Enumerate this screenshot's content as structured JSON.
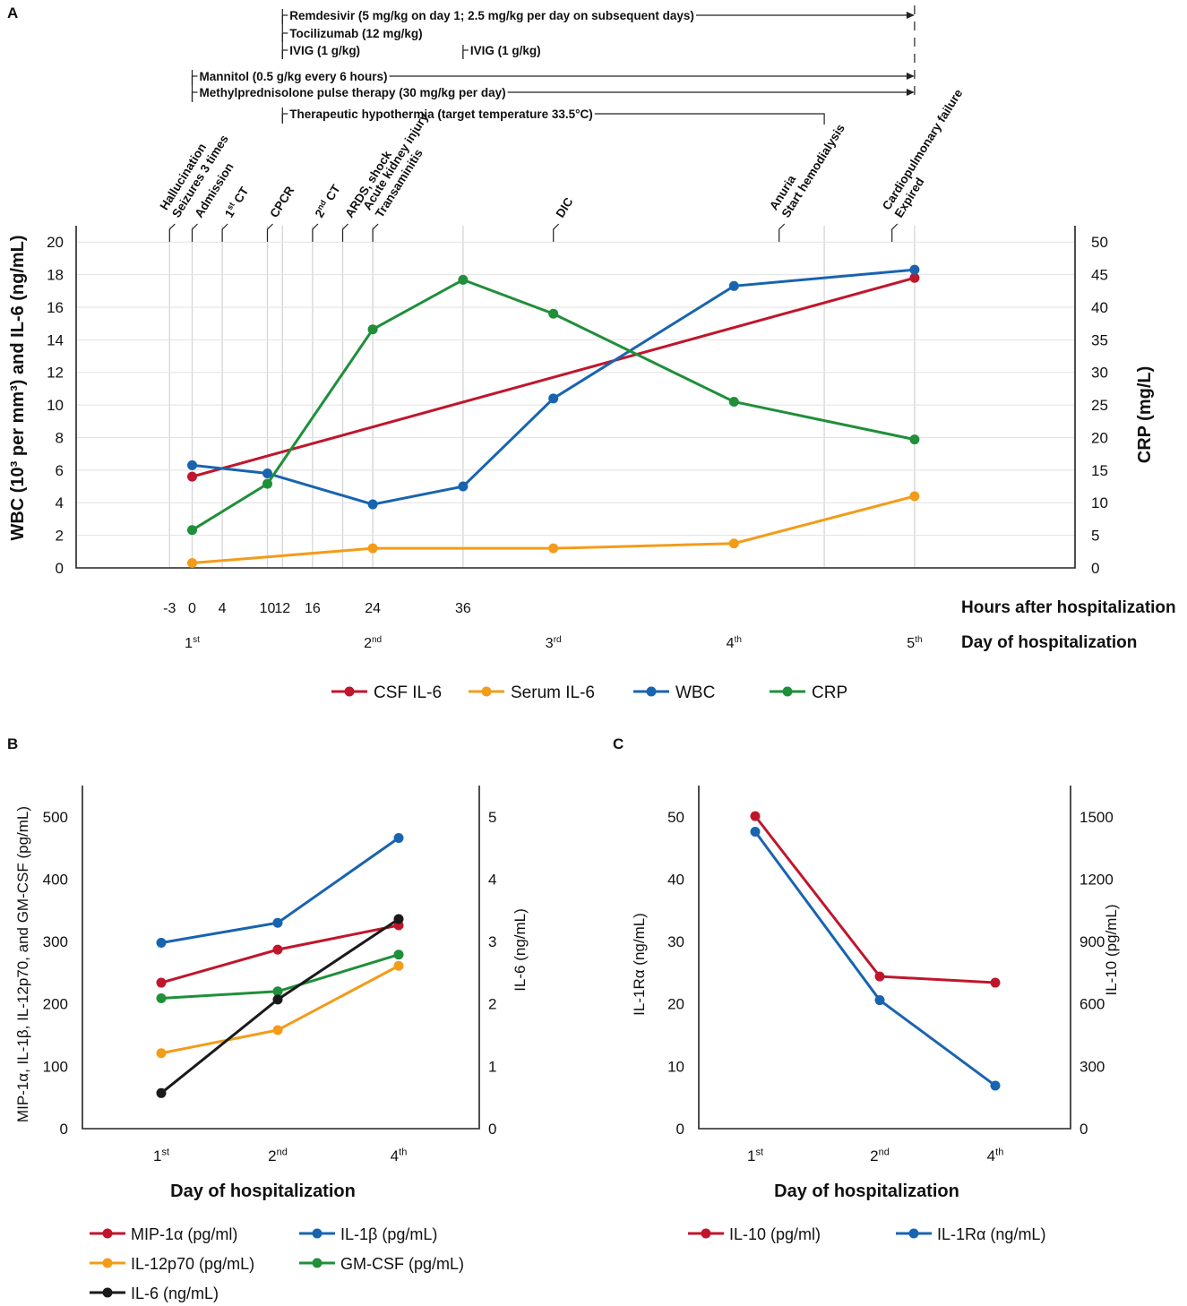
{
  "colors": {
    "red": "#c0162c",
    "orange": "#f39c19",
    "blue": "#1864b0",
    "green": "#1f8f3a",
    "black": "#1a1a1a",
    "grid": "#d6d6d6"
  },
  "panels": {
    "a": "A",
    "b": "B",
    "c": "C"
  },
  "treatments": [
    {
      "label": "Remdesivir (5 mg/kg on day 1; 2.5 mg/kg per day on subsequent days)",
      "start_hour": 12,
      "end_hour": 96,
      "arrow": true
    },
    {
      "label": "Tocilizumab (12 mg/kg)",
      "start_hour": 12,
      "end_hour": null,
      "arrow": false
    },
    {
      "label": "IVIG (1 g/kg)",
      "start_hour": 12,
      "end_hour": null,
      "arrow": false
    },
    {
      "label": "IVIG (1 g/kg)",
      "start_hour": 36,
      "end_hour": null,
      "arrow": false
    },
    {
      "label": "Mannitol (0.5 g/kg every 6 hours)",
      "start_hour": 0,
      "end_hour": 96,
      "arrow": true
    },
    {
      "label": "Methylprednisolone pulse therapy (30 mg/kg per day)",
      "start_hour": 0,
      "end_hour": 96,
      "arrow": true
    },
    {
      "label": "Therapeutic hypothermia (target temperature 33.5°C)",
      "start_hour": 12,
      "end_hour": 84,
      "arrow": false
    }
  ],
  "events": [
    {
      "hour": -3,
      "lines": [
        "Hallucination",
        "Seizures 3 times"
      ]
    },
    {
      "hour": 0,
      "lines": [
        "Admission"
      ]
    },
    {
      "hour": 4,
      "lines": [
        "1st CT"
      ]
    },
    {
      "hour": 10,
      "lines": [
        "CPCR"
      ]
    },
    {
      "hour": 16,
      "lines": [
        "2nd CT"
      ]
    },
    {
      "hour": 20,
      "lines": [
        "ARDS, shock"
      ]
    },
    {
      "hour": 24,
      "lines": [
        "Acute kidney injury",
        "Transaminitis"
      ]
    },
    {
      "hour": 48,
      "lines": [
        "DIC"
      ]
    },
    {
      "hour": 78,
      "lines": [
        "Anuria",
        "Start hemodialysis"
      ]
    },
    {
      "hour": 93,
      "lines": [
        "Cardiopulmonary failure",
        "Expired"
      ]
    }
  ],
  "chart_data": [
    {
      "type": "line",
      "panel": "A",
      "ylabel": "WBC (10³ per mm³) and IL-6 (ng/mL)",
      "y2label": "CRP (mg/L)",
      "xlabel_hours": "Hours after hospitalization",
      "xlabel_days": "Day of hospitalization",
      "xlim": [
        -11,
        120
      ],
      "ylim": [
        0,
        21
      ],
      "y2lim": [
        0,
        52.5
      ],
      "yticks": [
        0,
        2,
        4,
        6,
        8,
        10,
        12,
        14,
        16,
        18,
        20
      ],
      "y2ticks": [
        0,
        5,
        10,
        15,
        20,
        25,
        30,
        35,
        40,
        45,
        50
      ],
      "hour_ticks": [
        -3,
        0,
        4,
        10,
        12,
        16,
        24,
        36
      ],
      "grid_hours": [
        -3,
        0,
        4,
        10,
        12,
        16,
        20,
        24,
        36,
        84,
        96
      ],
      "day_ticks": [
        {
          "hour": 0,
          "num": "1",
          "sup": "st"
        },
        {
          "hour": 24,
          "num": "2",
          "sup": "nd"
        },
        {
          "hour": 48,
          "num": "3",
          "sup": "rd"
        },
        {
          "hour": 72,
          "num": "4",
          "sup": "th"
        },
        {
          "hour": 96,
          "num": "5",
          "sup": "th"
        }
      ],
      "series": [
        {
          "name": "CSF IL-6",
          "color": "red",
          "axis": "left",
          "x": [
            0,
            96
          ],
          "y": [
            5.6,
            17.8
          ]
        },
        {
          "name": "Serum IL-6",
          "color": "orange",
          "axis": "left",
          "x": [
            0,
            24,
            48,
            72,
            96
          ],
          "y": [
            0.3,
            1.2,
            1.2,
            1.5,
            4.4
          ]
        },
        {
          "name": "WBC",
          "color": "blue",
          "axis": "left",
          "x": [
            0,
            10,
            24,
            36,
            48,
            72,
            96
          ],
          "y": [
            6.3,
            5.8,
            3.9,
            5.0,
            10.4,
            17.3,
            18.3
          ]
        },
        {
          "name": "CRP",
          "color": "green",
          "axis": "right",
          "x": [
            0,
            10,
            24,
            36,
            48,
            72,
            96
          ],
          "y": [
            5.8,
            12.9,
            36.6,
            44.2,
            39.0,
            25.5,
            19.7
          ]
        }
      ]
    },
    {
      "type": "line",
      "panel": "B",
      "ylabel": "MIP-1α, IL-1β, IL-12p70, and GM-CSF (pg/mL)",
      "y2label": "IL-6 (ng/mL)",
      "xlabel": "Day of hospitalization",
      "categories": [
        {
          "num": "1",
          "sup": "st"
        },
        {
          "num": "2",
          "sup": "nd"
        },
        {
          "num": "4",
          "sup": "th"
        }
      ],
      "ylim": [
        0,
        550
      ],
      "y2lim": [
        0,
        5.5
      ],
      "yticks": [
        0,
        100,
        200,
        300,
        400,
        500
      ],
      "y2ticks": [
        0,
        1,
        2,
        3,
        4,
        5
      ],
      "series": [
        {
          "name": "MIP-1α (pg/ml)",
          "color": "red",
          "axis": "left",
          "values": [
            234,
            287,
            326
          ]
        },
        {
          "name": "IL-1β (pg/mL)",
          "color": "blue",
          "axis": "left",
          "values": [
            298,
            330,
            466
          ]
        },
        {
          "name": "IL-12p70 (pg/mL)",
          "color": "orange",
          "axis": "left",
          "values": [
            121,
            158,
            261
          ]
        },
        {
          "name": "GM-CSF (pg/mL)",
          "color": "green",
          "axis": "left",
          "values": [
            209,
            220,
            279
          ]
        },
        {
          "name": "IL-6 (ng/mL)",
          "color": "black",
          "axis": "right",
          "values": [
            0.57,
            2.07,
            3.36
          ]
        }
      ]
    },
    {
      "type": "line",
      "panel": "C",
      "ylabel": "IL-1Rα (ng/mL)",
      "y2label": "IL-10 (pg/mL)",
      "xlabel": "Day of hospitalization",
      "categories": [
        {
          "num": "1",
          "sup": "st"
        },
        {
          "num": "2",
          "sup": "nd"
        },
        {
          "num": "4",
          "sup": "th"
        }
      ],
      "ylim": [
        0,
        55
      ],
      "y2lim": [
        0,
        1650
      ],
      "yticks": [
        0,
        10,
        20,
        30,
        40,
        50
      ],
      "y2ticks": [
        0,
        300,
        600,
        900,
        1200,
        1500
      ],
      "series": [
        {
          "name": "IL-10 (pg/ml)",
          "color": "red",
          "axis": "right",
          "values": [
            1503,
            732,
            702
          ]
        },
        {
          "name": "IL-1Rα (ng/mL)",
          "color": "blue",
          "axis": "left",
          "values": [
            47.6,
            20.6,
            6.9
          ]
        }
      ]
    }
  ]
}
